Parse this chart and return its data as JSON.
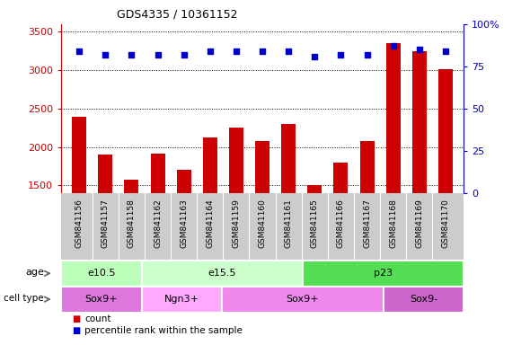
{
  "title": "GDS4335 / 10361152",
  "samples": [
    "GSM841156",
    "GSM841157",
    "GSM841158",
    "GSM841162",
    "GSM841163",
    "GSM841164",
    "GSM841159",
    "GSM841160",
    "GSM841161",
    "GSM841165",
    "GSM841166",
    "GSM841167",
    "GSM841168",
    "GSM841169",
    "GSM841170"
  ],
  "counts": [
    2400,
    1900,
    1580,
    1910,
    1700,
    2130,
    2250,
    2080,
    2300,
    1500,
    1800,
    2080,
    3350,
    3250,
    3010
  ],
  "percentile": [
    84,
    82,
    82,
    82,
    82,
    84,
    84,
    84,
    84,
    81,
    82,
    82,
    87,
    85,
    84
  ],
  "ylim_left": [
    1400,
    3600
  ],
  "ylim_right": [
    0,
    100
  ],
  "yticks_left": [
    1500,
    2000,
    2500,
    3000,
    3500
  ],
  "yticks_right": [
    0,
    25,
    50,
    75,
    100
  ],
  "bar_color": "#cc0000",
  "dot_color": "#0000cc",
  "age_groups": [
    {
      "label": "e10.5",
      "start": 0,
      "end": 3,
      "color": "#bbffbb"
    },
    {
      "label": "e15.5",
      "start": 3,
      "end": 9,
      "color": "#ccffcc"
    },
    {
      "label": "p23",
      "start": 9,
      "end": 15,
      "color": "#55dd55"
    }
  ],
  "cell_groups": [
    {
      "label": "Sox9+",
      "start": 0,
      "end": 3,
      "color": "#dd77dd"
    },
    {
      "label": "Ngn3+",
      "start": 3,
      "end": 6,
      "color": "#ffaaff"
    },
    {
      "label": "Sox9+",
      "start": 6,
      "end": 12,
      "color": "#ee88ee"
    },
    {
      "label": "Sox9-",
      "start": 12,
      "end": 15,
      "color": "#cc66cc"
    }
  ],
  "legend_count_color": "#cc0000",
  "legend_dot_color": "#0000cc",
  "xlabel_bg_color": "#cccccc",
  "plot_bg": "#ffffff"
}
